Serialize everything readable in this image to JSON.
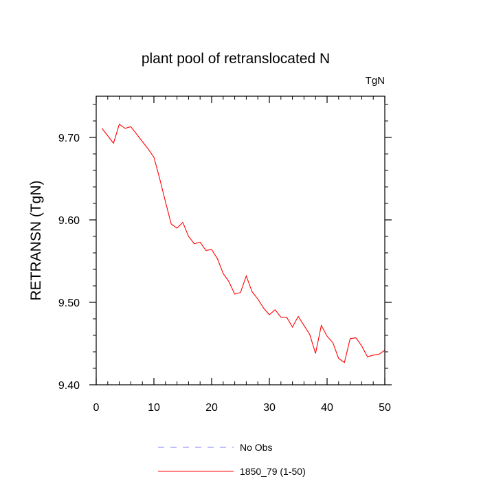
{
  "chart_data": {
    "type": "line",
    "title": "plant pool of retranslocated N",
    "units_label": "TgN",
    "ylabel": "RETRANSN  (TgN)",
    "xlabel": "",
    "xlim": [
      0,
      50
    ],
    "ylim": [
      9.4,
      9.75
    ],
    "x_ticks": [
      0,
      10,
      20,
      30,
      40,
      50
    ],
    "x_tick_labels": [
      "0",
      "10",
      "20",
      "30",
      "40",
      "50"
    ],
    "y_ticks": [
      9.4,
      9.5,
      9.6,
      9.7
    ],
    "y_tick_labels": [
      "9.40",
      "9.50",
      "9.60",
      "9.70"
    ],
    "grid": false,
    "legend_position": "bottom",
    "series": [
      {
        "name": "1850_79 (1-50)",
        "color": "#ff0000",
        "style": "solid",
        "x": [
          1,
          2,
          3,
          4,
          5,
          6,
          7,
          8,
          9,
          10,
          11,
          12,
          13,
          14,
          15,
          16,
          17,
          18,
          19,
          20,
          21,
          22,
          23,
          24,
          25,
          26,
          27,
          28,
          29,
          30,
          31,
          32,
          33,
          34,
          35,
          36,
          37,
          38,
          39,
          40,
          41,
          42,
          43,
          44,
          45,
          46,
          47,
          48,
          49,
          50
        ],
        "values": [
          9.711,
          9.702,
          9.693,
          9.716,
          9.711,
          9.713,
          9.704,
          9.695,
          9.686,
          9.676,
          9.65,
          9.622,
          9.595,
          9.59,
          9.597,
          9.58,
          9.571,
          9.573,
          9.563,
          9.564,
          9.553,
          9.535,
          9.525,
          9.51,
          9.512,
          9.532,
          9.513,
          9.504,
          9.493,
          9.485,
          9.491,
          9.482,
          9.482,
          9.47,
          9.483,
          9.472,
          9.461,
          9.438,
          9.472,
          9.459,
          9.451,
          9.432,
          9.427,
          9.456,
          9.457,
          9.447,
          9.434,
          9.436,
          9.437,
          9.442
        ]
      }
    ],
    "legend": [
      {
        "label": "No Obs",
        "color": "#8080ff",
        "style": "dashed"
      },
      {
        "label": "1850_79 (1-50)",
        "color": "#ff0000",
        "style": "solid"
      }
    ]
  }
}
